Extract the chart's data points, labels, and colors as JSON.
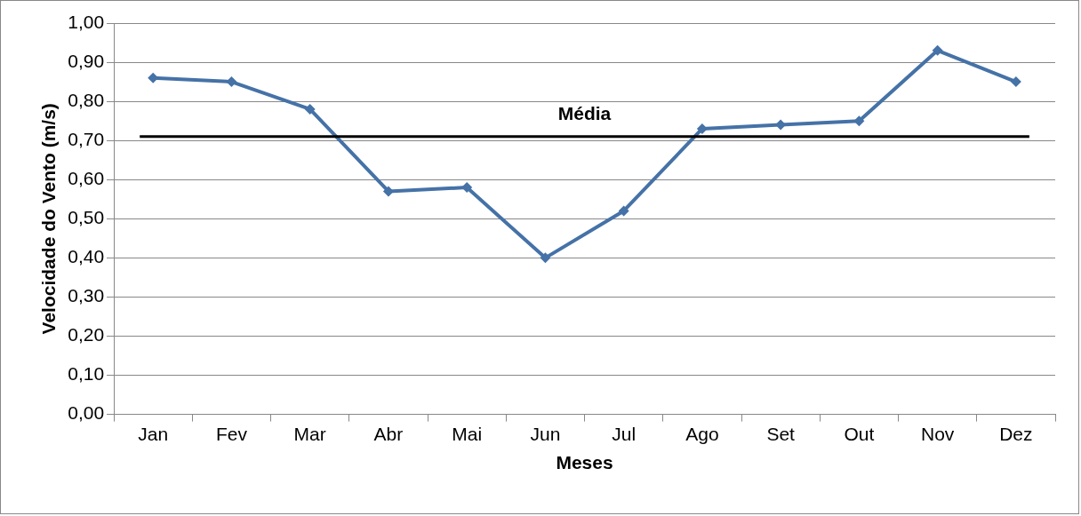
{
  "chart_data": {
    "type": "line",
    "xlabel": "Meses",
    "ylabel": "Velocidade do Vento (m/s)",
    "categories": [
      "Jan",
      "Fev",
      "Mar",
      "Abr",
      "Mai",
      "Jun",
      "Jul",
      "Ago",
      "Set",
      "Out",
      "Nov",
      "Dez"
    ],
    "series": [
      {
        "color": "#4572a7",
        "values": [
          0.86,
          0.85,
          0.78,
          0.57,
          0.58,
          0.4,
          0.52,
          0.73,
          0.74,
          0.75,
          0.93,
          0.85
        ]
      }
    ],
    "ylim": [
      0,
      1
    ],
    "yticks": [
      {
        "value": 0,
        "label": "0,00"
      },
      {
        "value": 0.1,
        "label": "0,10"
      },
      {
        "value": 0.2,
        "label": "0,20"
      },
      {
        "value": 0.3,
        "label": "0,30"
      },
      {
        "value": 0.4,
        "label": "0,40"
      },
      {
        "value": 0.5,
        "label": "0,50"
      },
      {
        "value": 0.6,
        "label": "0,60"
      },
      {
        "value": 0.7,
        "label": "0,70"
      },
      {
        "value": 0.8,
        "label": "0,80"
      },
      {
        "value": 0.9,
        "label": "0,90"
      },
      {
        "value": 1,
        "label": "1,00"
      }
    ],
    "grid": "y",
    "marker": "diamond",
    "line_style": "solid",
    "ref_lines": [
      {
        "axis": "y",
        "value": 0.71,
        "label": "Média",
        "color": "#000000"
      }
    ]
  }
}
